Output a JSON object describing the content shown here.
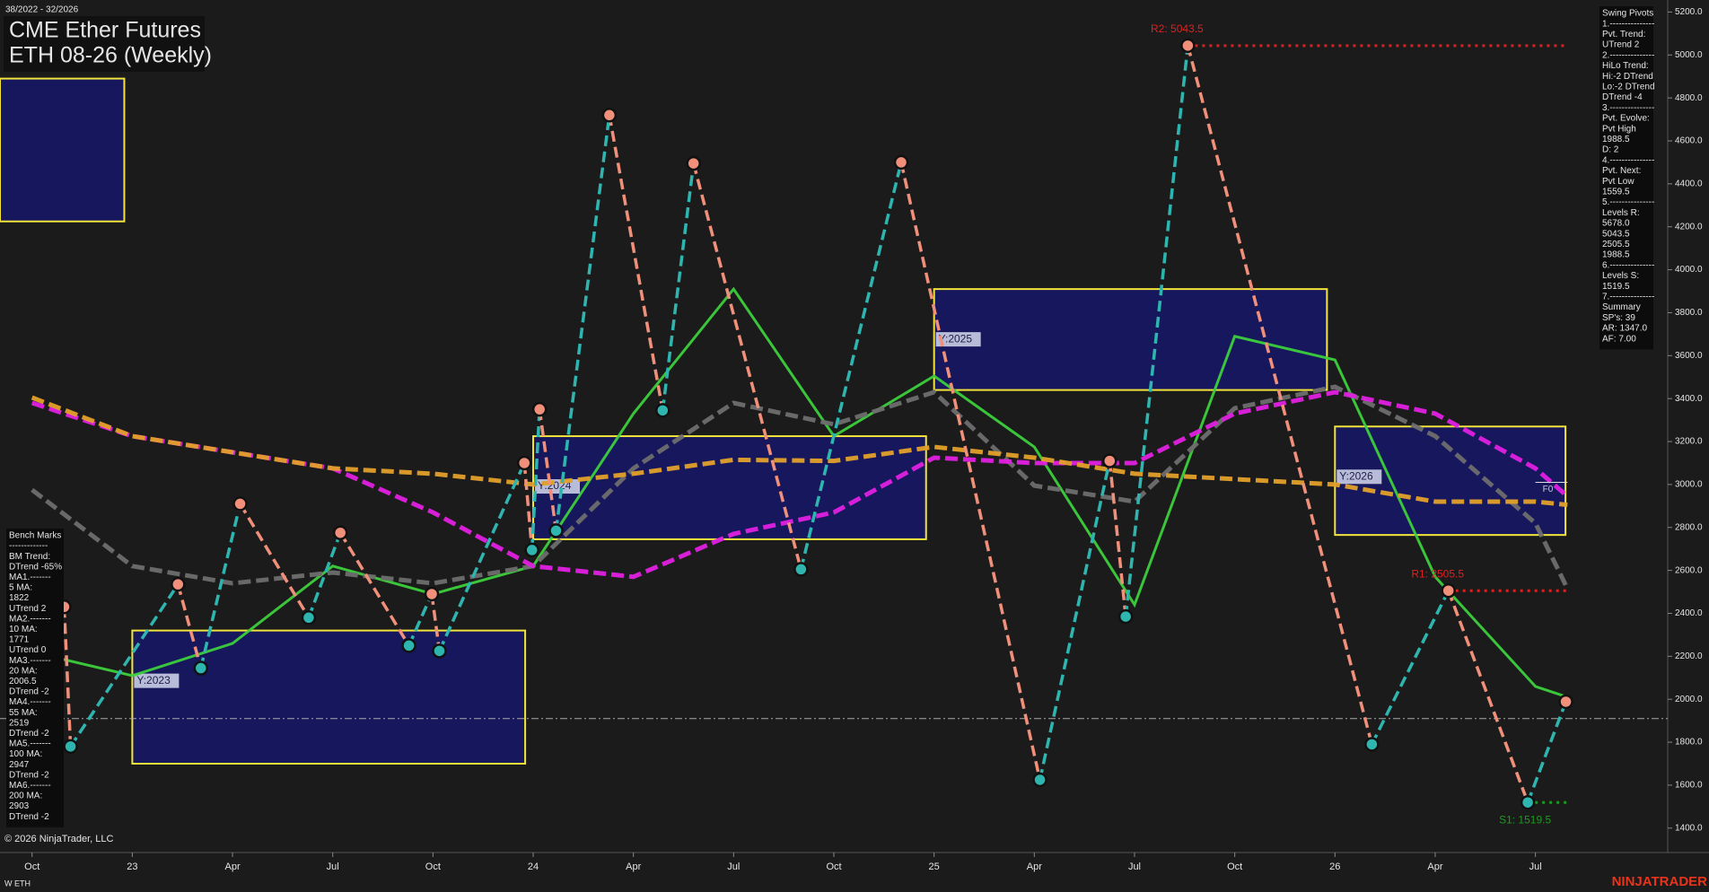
{
  "chart_data": {
    "type": "line",
    "title": "CME Ether Futures",
    "subtitle": "ETH 08-26 (Weekly)",
    "date_range": "38/2022 - 32/2026",
    "copyright": "© 2026 NinjaTrader, LLC",
    "instrument_tag": "W ETH",
    "brand": "NINJATRADER",
    "xlim": [
      2022.67,
      2026.83
    ],
    "xticks": [
      {
        "value": 2022.75,
        "label": "Oct"
      },
      {
        "value": 2023.0,
        "label": "23"
      },
      {
        "value": 2023.25,
        "label": "Apr"
      },
      {
        "value": 2023.5,
        "label": "Jul"
      },
      {
        "value": 2023.75,
        "label": "Oct"
      },
      {
        "value": 2024.0,
        "label": "24"
      },
      {
        "value": 2024.25,
        "label": "Apr"
      },
      {
        "value": 2024.5,
        "label": "Jul"
      },
      {
        "value": 2024.75,
        "label": "Oct"
      },
      {
        "value": 2025.0,
        "label": "25"
      },
      {
        "value": 2025.25,
        "label": "Apr"
      },
      {
        "value": 2025.5,
        "label": "Jul"
      },
      {
        "value": 2025.75,
        "label": "Oct"
      },
      {
        "value": 2026.0,
        "label": "26"
      },
      {
        "value": 2026.25,
        "label": "Apr"
      },
      {
        "value": 2026.5,
        "label": "Jul"
      }
    ],
    "ylim": [
      1400,
      5200
    ],
    "yticks": [
      {
        "value": 1400,
        "label": "1400.0"
      },
      {
        "value": 1600,
        "label": "1600.0"
      },
      {
        "value": 1800,
        "label": "1800.0"
      },
      {
        "value": 2000,
        "label": "2000.0"
      },
      {
        "value": 2200,
        "label": "2200.0"
      },
      {
        "value": 2400,
        "label": "2400.0"
      },
      {
        "value": 2600,
        "label": "2600.0"
      },
      {
        "value": 2800,
        "label": "2800.0"
      },
      {
        "value": 3000,
        "label": "3000.0"
      },
      {
        "value": 3200,
        "label": "3200.0"
      },
      {
        "value": 3400,
        "label": "3400.0"
      },
      {
        "value": 3600,
        "label": "3600.0"
      },
      {
        "value": 3800,
        "label": "3800.0"
      },
      {
        "value": 4000,
        "label": "4000.0"
      },
      {
        "value": 4200,
        "label": "4200.0"
      },
      {
        "value": 4400,
        "label": "4400.0"
      },
      {
        "value": 4600,
        "label": "4600.0"
      },
      {
        "value": 4800,
        "label": "4800.0"
      },
      {
        "value": 5000,
        "label": "5000.0"
      },
      {
        "value": 5200,
        "label": "5200.0"
      }
    ],
    "pivots": {
      "up_color": "#2fb5b0",
      "down_color": "#f0907a",
      "x": [
        2022.83,
        2022.846,
        2023.114,
        2023.171,
        2023.269,
        2023.44,
        2023.519,
        2023.69,
        2023.747,
        2023.766,
        2023.978,
        2023.997,
        2024.016,
        2024.057,
        2024.19,
        2024.323,
        2024.4,
        2024.668,
        2024.918,
        2025.264,
        2025.438,
        2025.478,
        2025.633,
        2026.092,
        2026.283,
        2026.481,
        2026.576
      ],
      "values": [
        2430,
        1780,
        2535,
        2145,
        2910,
        2380,
        2775,
        2250,
        2490,
        2225,
        3100,
        2695,
        3350,
        2785,
        4720,
        3345,
        4495,
        2605,
        4500,
        1625,
        3110,
        2385,
        5043.5,
        1790,
        2505.5,
        1519.5,
        1988.5
      ]
    },
    "series": [
      {
        "color": "#3ccf3c",
        "dash": false,
        "x": [
          2022.75,
          2023.0,
          2023.25,
          2023.5,
          2023.75,
          2024.0,
          2024.25,
          2024.5,
          2024.75,
          2025.0,
          2025.25,
          2025.5,
          2025.75,
          2026.0,
          2026.25,
          2026.5,
          2026.58
        ],
        "values": [
          2220,
          2110,
          2260,
          2620,
          2490,
          2620,
          3330,
          3910,
          3225,
          3505,
          3175,
          2440,
          3690,
          3580,
          2570,
          2060,
          2010
        ]
      },
      {
        "color": "#6e6e6e",
        "dash": true,
        "x": [
          2022.75,
          2023.0,
          2023.25,
          2023.5,
          2023.75,
          2024.0,
          2024.25,
          2024.5,
          2024.75,
          2025.0,
          2025.25,
          2025.5,
          2025.75,
          2026.0,
          2026.25,
          2026.5,
          2026.58
        ],
        "values": [
          2975,
          2620,
          2540,
          2590,
          2540,
          2620,
          3075,
          3380,
          3280,
          3430,
          2995,
          2920,
          3355,
          3455,
          3225,
          2820,
          2515
        ]
      },
      {
        "color": "#e020e0",
        "dash": true,
        "x": [
          2022.75,
          2023.0,
          2023.25,
          2023.5,
          2023.75,
          2024.0,
          2024.25,
          2024.5,
          2024.75,
          2025.0,
          2025.25,
          2025.5,
          2025.75,
          2026.0,
          2026.25,
          2026.5,
          2026.58
        ],
        "values": [
          3380,
          3225,
          3150,
          3075,
          2870,
          2620,
          2570,
          2770,
          2870,
          3125,
          3100,
          3100,
          3330,
          3430,
          3330,
          3075,
          2945
        ]
      },
      {
        "color": "#e3a02a",
        "dash": true,
        "x": [
          2022.75,
          2023.0,
          2023.25,
          2023.5,
          2023.75,
          2024.0,
          2024.25,
          2024.5,
          2024.75,
          2025.0,
          2025.25,
          2025.5,
          2025.75,
          2026.0,
          2026.25,
          2026.5,
          2026.58
        ],
        "values": [
          3405,
          3225,
          3150,
          3075,
          3050,
          3000,
          3050,
          3115,
          3110,
          3175,
          3125,
          3050,
          3025,
          3000,
          2920,
          2920,
          2905
        ]
      }
    ],
    "boxes": [
      {
        "x": [
          2022.67,
          2022.98
        ],
        "y": [
          4225,
          4890
        ]
      },
      {
        "label": "Y:2023",
        "x": [
          2023.0,
          2023.98
        ],
        "y": [
          1700,
          2320
        ]
      },
      {
        "label": "Y:2024",
        "x": [
          2024.0,
          2024.98
        ],
        "y": [
          2745,
          3225
        ]
      },
      {
        "label": "Y:2025",
        "x": [
          2025.0,
          2025.98
        ],
        "y": [
          3440,
          3910
        ]
      },
      {
        "label": "Y:2026",
        "x": [
          2026.0,
          2026.575
        ],
        "y": [
          2765,
          3270
        ]
      }
    ],
    "levels": [
      {
        "label": "R2: 5043.5",
        "value": 5043.5,
        "x": [
          2025.633,
          2026.58
        ],
        "color": "#e02020"
      },
      {
        "label": "R1: 2505.5",
        "value": 2505.5,
        "x": [
          2026.283,
          2026.58
        ],
        "color": "#e02020"
      },
      {
        "label": "S1: 1519.5",
        "value": 1519.5,
        "x": [
          2026.481,
          2026.58
        ],
        "color": "#1f9a1f"
      }
    ],
    "reference_line": 1910,
    "f0": {
      "label": "F0",
      "value": 3010,
      "x": [
        2026.5,
        2026.58
      ]
    },
    "right_panel": [
      "Swing Pivots",
      "1.---------------",
      "Pvt. Trend:",
      "UTrend 2",
      "2.---------------",
      "HiLo Trend:",
      "Hi:-2 DTrend",
      "Lo:-2 DTrend",
      "DTrend -4",
      "3.---------------",
      "Pvt. Evolve:",
      "Pvt High",
      "1988.5",
      "D: 2",
      "4.---------------",
      "Pvt. Next:",
      "Pvt Low",
      "1559.5",
      "5.---------------",
      "Levels R:",
      "5678.0",
      "5043.5",
      "2505.5",
      "1988.5",
      "6.---------------",
      "Levels S:",
      "1519.5",
      "7.---------------",
      "Summary",
      "SP's: 39",
      "AR: 1347.0",
      "AF: 7.00"
    ],
    "left_panel": [
      "Bench Marks",
      "-------------",
      "BM Trend:",
      "DTrend -65%",
      "MA1.-------",
      "5 MA:",
      "1822",
      "UTrend 2",
      "MA2.-------",
      "10 MA:",
      "1771",
      "UTrend 0",
      "MA3.-------",
      "20 MA:",
      "2006.5",
      "DTrend -2",
      "MA4.-------",
      "55 MA:",
      "2519",
      "DTrend -2",
      "MA5.-------",
      "100 MA:",
      "2947",
      "DTrend -2",
      "MA6.-------",
      "200 MA:",
      "2903",
      "DTrend -2"
    ]
  }
}
